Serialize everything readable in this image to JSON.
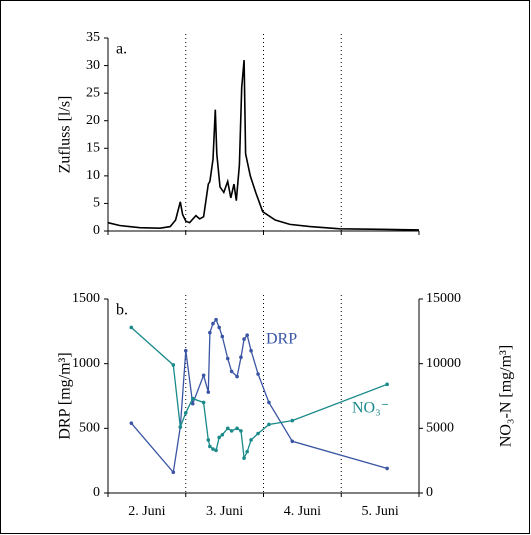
{
  "chart_data": [
    {
      "type": "line",
      "panel_label": "a.",
      "y_label": "Zufluss [l/s]",
      "xlim": [
        0,
        4
      ],
      "xticks": [
        0,
        1,
        2,
        3,
        4
      ],
      "dividers": true,
      "ylim": [
        0,
        35
      ],
      "yticks": [
        0,
        5,
        10,
        15,
        20,
        25,
        30,
        35
      ],
      "color": "#000000",
      "x": [
        0,
        0.15,
        0.41,
        0.67,
        0.8,
        0.87,
        0.93,
        0.96,
        1.0,
        1.05,
        1.13,
        1.18,
        1.23,
        1.29,
        1.31,
        1.35,
        1.38,
        1.4,
        1.44,
        1.49,
        1.54,
        1.58,
        1.62,
        1.65,
        1.69,
        1.72,
        1.75,
        1.77,
        1.83,
        1.9,
        1.99,
        2.15,
        2.34,
        2.6,
        2.98,
        3.5,
        4.0
      ],
      "values": [
        1.5,
        1.0,
        0.6,
        0.5,
        0.8,
        2,
        5.3,
        3,
        1.8,
        1.5,
        2.8,
        2.2,
        2.6,
        8.5,
        9,
        13,
        22,
        14,
        8,
        7,
        9,
        6,
        8.5,
        5.5,
        12,
        26,
        31,
        14,
        10,
        7,
        3.5,
        2,
        1.2,
        0.8,
        0.4,
        0.3,
        0.2
      ]
    },
    {
      "type": "line",
      "panel_label": "b.",
      "y_label": "DRP [mg/m³]",
      "y2_label": "NO₃-N [mg/m³]",
      "xlim": [
        0,
        4
      ],
      "xticks": [
        0,
        1,
        2,
        3,
        4
      ],
      "dividers": true,
      "x_labels": [
        "2. Juni",
        "3. Juni",
        "4. Juni",
        "5. Juni"
      ],
      "ylim": [
        0,
        1500
      ],
      "yticks": [
        0,
        500,
        1000,
        1500
      ],
      "y2lim": [
        0,
        15000
      ],
      "y2ticks": [
        0,
        5000,
        10000,
        15000
      ],
      "x": [
        0.3,
        0.84,
        0.93,
        1.0,
        1.09,
        1.23,
        1.29,
        1.31,
        1.35,
        1.39,
        1.43,
        1.47,
        1.54,
        1.59,
        1.66,
        1.71,
        1.75,
        1.79,
        1.84,
        1.93,
        2.07,
        2.37,
        3.59
      ],
      "series": [
        {
          "name": "DRP",
          "color": "#3a55a4",
          "values": [
            540,
            160,
            510,
            1100,
            690,
            910,
            780,
            1240,
            1310,
            1340,
            1280,
            1210,
            1040,
            940,
            900,
            1050,
            1190,
            1220,
            1100,
            920,
            700,
            400,
            190
          ]
        },
        {
          "name": "NO₃⁻",
          "color": "#1a8a8a",
          "axis": "y2",
          "values": [
            12800,
            9900,
            5100,
            6200,
            7300,
            7000,
            4100,
            3600,
            3400,
            3300,
            4300,
            4500,
            5000,
            4800,
            5000,
            4800,
            2700,
            3200,
            4100,
            4600,
            5300,
            5600,
            8400
          ]
        }
      ]
    }
  ]
}
